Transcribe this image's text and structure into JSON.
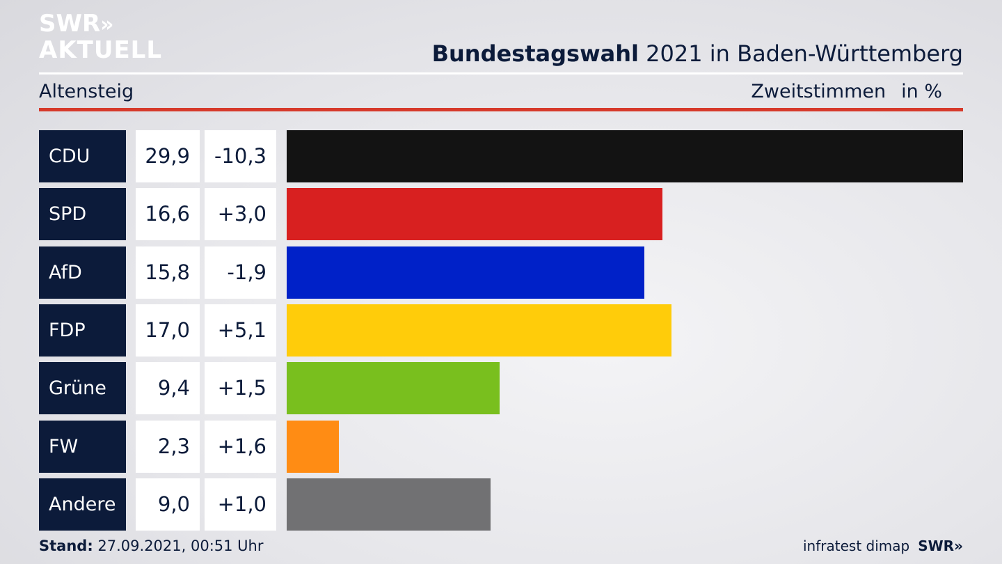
{
  "brand": {
    "logo_line1": "SWR",
    "logo_chevrons": "»",
    "logo_line2": "AKTUELL",
    "footer_source": "infratest dimap",
    "footer_logo": "SWR",
    "footer_chevrons": "»"
  },
  "header": {
    "title_bold": "Bundestagswahl",
    "title_rest": " 2021 in Baden-Württemberg",
    "region": "Altensteig",
    "measure": "Zweitstimmen",
    "unit": "in %"
  },
  "footer": {
    "stand_label": "Stand:",
    "stand_value": " 27.09.2021, 00:51 Uhr"
  },
  "colors": {
    "navy": "#0c1b3a",
    "accent_red": "#d63a2b"
  },
  "chart_data": {
    "type": "bar",
    "orientation": "horizontal",
    "categories": [
      "CDU",
      "SPD",
      "AfD",
      "FDP",
      "Grüne",
      "FW",
      "Andere"
    ],
    "values": [
      29.9,
      16.6,
      15.8,
      17.0,
      9.4,
      2.3,
      9.0
    ],
    "value_labels": [
      "29,9",
      "16,6",
      "15,8",
      "17,0",
      "9,4",
      "2,3",
      "9,0"
    ],
    "diff_labels": [
      "-10,3",
      "+3,0",
      "-1,9",
      "+5,1",
      "+1,5",
      "+1,6",
      "+1,0"
    ],
    "diffs": [
      -10.3,
      3.0,
      -1.9,
      5.1,
      1.5,
      1.6,
      1.0
    ],
    "bar_colors": [
      "#131313",
      "#d82020",
      "#0021c8",
      "#ffcc0a",
      "#79bf1e",
      "#ff8c14",
      "#717173"
    ],
    "xlim": [
      0,
      29.9
    ],
    "grid": false,
    "legend": "none"
  }
}
